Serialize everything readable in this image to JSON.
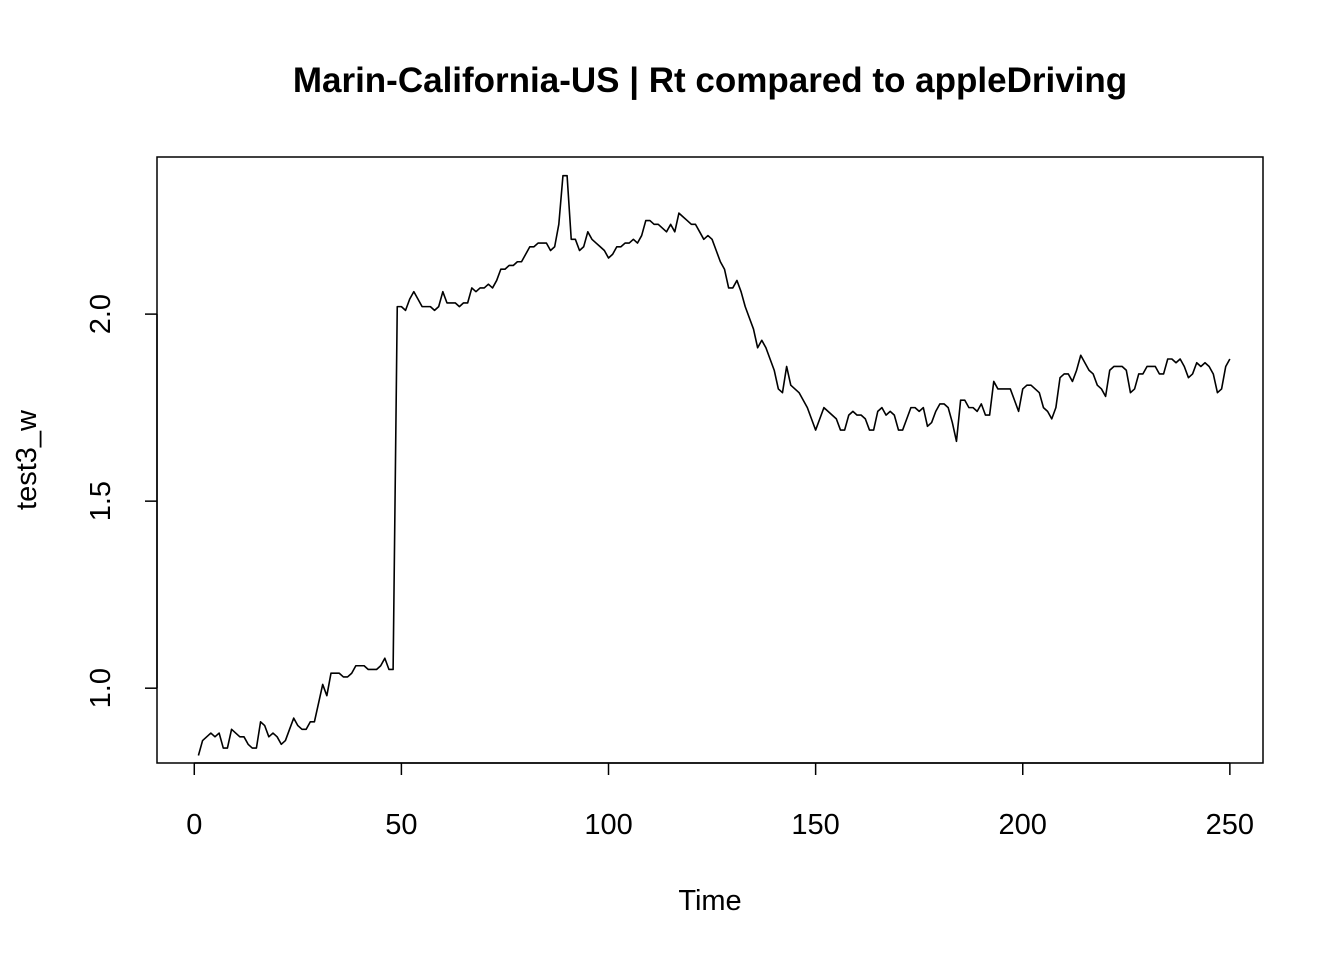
{
  "chart_data": {
    "type": "line",
    "title": "Marin-California-US | Rt compared to appleDriving",
    "xlabel": "Time",
    "ylabel": "test3_w",
    "xlim": [
      -9,
      258
    ],
    "ylim": [
      0.8,
      2.42
    ],
    "x_ticks": [
      0,
      50,
      100,
      150,
      200,
      250
    ],
    "x_tick_labels": [
      "0",
      "50",
      "100",
      "150",
      "200",
      "250"
    ],
    "y_ticks": [
      1.0,
      1.5,
      2.0
    ],
    "y_tick_labels": [
      "1.0",
      "1.5",
      "2.0"
    ],
    "grid": false,
    "series": [
      {
        "x_start": 1,
        "values": [
          0.82,
          0.86,
          0.87,
          0.88,
          0.87,
          0.88,
          0.84,
          0.84,
          0.89,
          0.88,
          0.87,
          0.87,
          0.85,
          0.84,
          0.84,
          0.91,
          0.9,
          0.87,
          0.88,
          0.87,
          0.85,
          0.86,
          0.89,
          0.92,
          0.9,
          0.89,
          0.89,
          0.91,
          0.91,
          0.96,
          1.01,
          0.98,
          1.04,
          1.04,
          1.04,
          1.03,
          1.03,
          1.04,
          1.06,
          1.06,
          1.06,
          1.05,
          1.05,
          1.05,
          1.06,
          1.08,
          1.05,
          1.05,
          2.02,
          2.02,
          2.01,
          2.04,
          2.06,
          2.04,
          2.02,
          2.02,
          2.02,
          2.01,
          2.02,
          2.06,
          2.03,
          2.03,
          2.03,
          2.02,
          2.03,
          2.03,
          2.07,
          2.06,
          2.07,
          2.07,
          2.08,
          2.07,
          2.09,
          2.12,
          2.12,
          2.13,
          2.13,
          2.14,
          2.14,
          2.16,
          2.18,
          2.18,
          2.19,
          2.19,
          2.19,
          2.17,
          2.18,
          2.24,
          2.37,
          2.37,
          2.2,
          2.2,
          2.17,
          2.18,
          2.22,
          2.2,
          2.19,
          2.18,
          2.17,
          2.15,
          2.16,
          2.18,
          2.18,
          2.19,
          2.19,
          2.2,
          2.19,
          2.21,
          2.25,
          2.25,
          2.24,
          2.24,
          2.23,
          2.22,
          2.24,
          2.22,
          2.27,
          2.26,
          2.25,
          2.24,
          2.24,
          2.22,
          2.2,
          2.21,
          2.2,
          2.17,
          2.14,
          2.12,
          2.07,
          2.07,
          2.09,
          2.06,
          2.02,
          1.99,
          1.96,
          1.91,
          1.93,
          1.91,
          1.88,
          1.85,
          1.8,
          1.79,
          1.86,
          1.81,
          1.8,
          1.79,
          1.77,
          1.75,
          1.72,
          1.69,
          1.72,
          1.75,
          1.74,
          1.73,
          1.72,
          1.69,
          1.69,
          1.73,
          1.74,
          1.73,
          1.73,
          1.72,
          1.69,
          1.69,
          1.74,
          1.75,
          1.73,
          1.74,
          1.73,
          1.69,
          1.69,
          1.72,
          1.75,
          1.75,
          1.74,
          1.75,
          1.7,
          1.71,
          1.74,
          1.76,
          1.76,
          1.75,
          1.71,
          1.66,
          1.77,
          1.77,
          1.75,
          1.75,
          1.74,
          1.76,
          1.73,
          1.73,
          1.82,
          1.8,
          1.8,
          1.8,
          1.8,
          1.77,
          1.74,
          1.8,
          1.81,
          1.81,
          1.8,
          1.79,
          1.75,
          1.74,
          1.72,
          1.75,
          1.83,
          1.84,
          1.84,
          1.82,
          1.85,
          1.89,
          1.87,
          1.85,
          1.84,
          1.81,
          1.8,
          1.78,
          1.85,
          1.86,
          1.86,
          1.86,
          1.85,
          1.79,
          1.8,
          1.84,
          1.84,
          1.86,
          1.86,
          1.86,
          1.84,
          1.84,
          1.88,
          1.88,
          1.87,
          1.88,
          1.86,
          1.83,
          1.84,
          1.87,
          1.86,
          1.87,
          1.86,
          1.84,
          1.79,
          1.8,
          1.86,
          1.88
        ]
      }
    ]
  }
}
